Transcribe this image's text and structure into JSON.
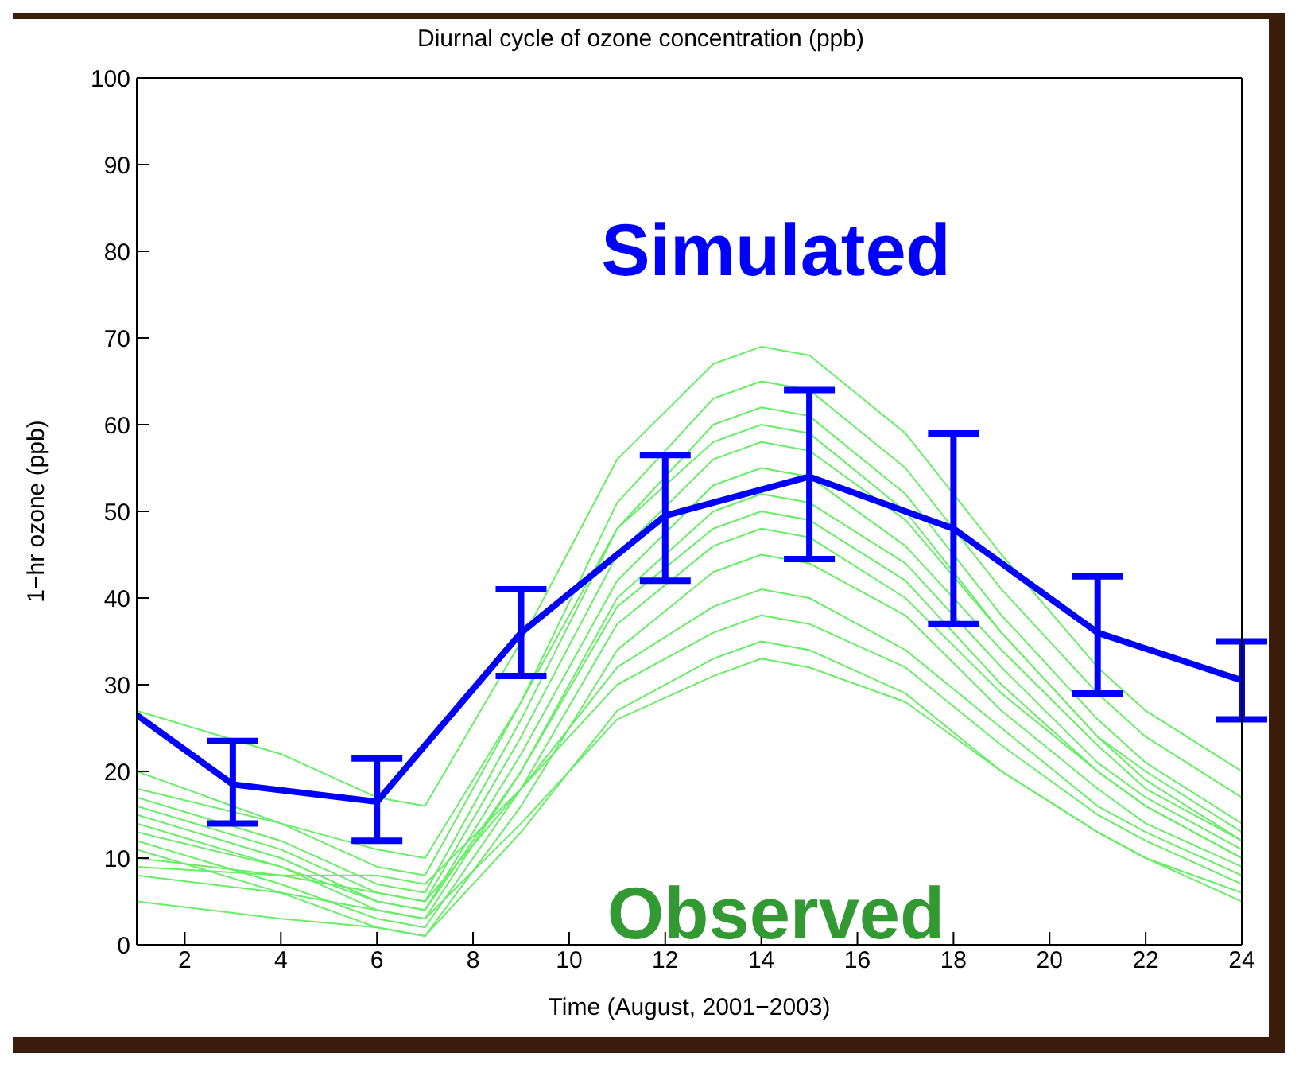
{
  "chart_data": {
    "type": "line",
    "title": "Diurnal cycle of ozone concentration (ppb)",
    "xlabel": "Time (August, 2001−2003)",
    "ylabel": "1−hr ozone (ppb)",
    "xlim": [
      1,
      24
    ],
    "xticks": [
      2,
      4,
      6,
      8,
      10,
      12,
      14,
      16,
      18,
      20,
      22,
      24
    ],
    "ylim": [
      0,
      100
    ],
    "yticks": [
      0,
      10,
      20,
      30,
      40,
      50,
      60,
      70,
      80,
      90,
      100
    ],
    "grid": false,
    "legend": false,
    "marker": "none",
    "line_style": "solid",
    "annotations": [
      "Observed"
    ],
    "series": [
      {
        "name": "Simulated",
        "color": "#0000ff",
        "x": [
          1,
          3,
          6,
          9,
          12,
          15,
          18,
          21,
          24
        ],
        "values": [
          26.5,
          18.5,
          16.5,
          36,
          49.5,
          54,
          48,
          36,
          30.5
        ],
        "errors": [
          null,
          [
            14,
            23.5
          ],
          [
            12,
            21.5
          ],
          [
            31,
            41
          ],
          [
            42,
            56.5
          ],
          [
            44.5,
            64
          ],
          [
            37,
            59
          ],
          [
            29,
            42.5
          ],
          [
            26,
            35
          ]
        ]
      },
      {
        "color": "#66ee66",
        "x": [
          1,
          4,
          6,
          7,
          9,
          11,
          13,
          14,
          15,
          17,
          19,
          21,
          22,
          24
        ],
        "values": [
          27,
          22,
          17,
          16,
          35,
          56,
          67,
          69,
          68,
          59,
          45,
          32,
          27,
          20
        ]
      },
      {
        "color": "#66ee66",
        "x": [
          1,
          4,
          6,
          7,
          9,
          11,
          13,
          14,
          15,
          17,
          19,
          21,
          22,
          24
        ],
        "values": [
          20,
          14,
          9,
          8,
          28,
          51,
          63,
          65,
          64,
          55,
          41,
          29,
          24,
          17
        ]
      },
      {
        "color": "#66ee66",
        "x": [
          1,
          4,
          6,
          7,
          9,
          11,
          13,
          14,
          15,
          17,
          19,
          21,
          22,
          24
        ],
        "values": [
          17,
          12,
          7,
          6,
          26,
          48,
          60,
          62,
          61,
          52,
          38,
          26,
          21,
          14
        ]
      },
      {
        "color": "#66ee66",
        "x": [
          1,
          4,
          6,
          7,
          9,
          11,
          13,
          14,
          15,
          17,
          19,
          21,
          22,
          24
        ],
        "values": [
          16,
          11,
          6,
          5,
          24,
          45,
          56,
          58,
          57,
          49,
          36,
          24,
          20,
          13
        ]
      },
      {
        "color": "#66ee66",
        "x": [
          1,
          4,
          6,
          7,
          9,
          11,
          13,
          14,
          15,
          17,
          19,
          21,
          22,
          24
        ],
        "values": [
          15,
          10,
          5,
          4,
          22,
          42,
          53,
          55,
          54,
          46,
          34,
          23,
          18,
          12
        ]
      },
      {
        "color": "#66ee66",
        "x": [
          1,
          4,
          6,
          7,
          9,
          11,
          13,
          14,
          15,
          17,
          19,
          21,
          22,
          24
        ],
        "values": [
          14,
          9,
          4,
          3,
          20,
          40,
          50,
          52,
          51,
          44,
          32,
          21,
          17,
          11
        ]
      },
      {
        "color": "#66ee66",
        "x": [
          1,
          4,
          6,
          7,
          9,
          11,
          13,
          14,
          15,
          17,
          19,
          21,
          22,
          24
        ],
        "values": [
          13,
          9,
          5,
          4,
          20,
          39,
          48,
          50,
          49,
          42,
          30,
          20,
          16,
          10
        ]
      },
      {
        "color": "#66ee66",
        "x": [
          1,
          4,
          6,
          7,
          9,
          11,
          13,
          14,
          15,
          17,
          19,
          21,
          22,
          24
        ],
        "values": [
          12,
          7,
          3,
          2,
          18,
          37,
          46,
          48,
          47,
          40,
          29,
          20,
          16,
          10
        ]
      },
      {
        "color": "#66ee66",
        "x": [
          1,
          4,
          6,
          7,
          9,
          11,
          13,
          14,
          15,
          17,
          19,
          21,
          22,
          24
        ],
        "values": [
          11,
          6,
          2,
          1,
          16,
          34,
          43,
          45,
          44,
          38,
          27,
          18,
          14,
          9
        ]
      },
      {
        "color": "#66ee66",
        "x": [
          1,
          4,
          6,
          7,
          9,
          11,
          13,
          14,
          15,
          17,
          19,
          21,
          22,
          24
        ],
        "values": [
          10,
          8,
          6,
          5,
          18,
          32,
          39,
          41,
          40,
          34,
          25,
          16,
          13,
          8
        ]
      },
      {
        "color": "#66ee66",
        "x": [
          1,
          4,
          6,
          7,
          9,
          11,
          13,
          14,
          15,
          17,
          19,
          21,
          22,
          24
        ],
        "values": [
          9,
          8,
          8,
          7,
          18,
          30,
          36,
          38,
          37,
          32,
          23,
          15,
          12,
          7
        ]
      },
      {
        "color": "#66ee66",
        "x": [
          1,
          4,
          6,
          7,
          9,
          11,
          13,
          14,
          15,
          17,
          19,
          21,
          22,
          24
        ],
        "values": [
          5,
          3,
          2,
          1,
          13,
          27,
          33,
          35,
          34,
          29,
          20,
          13,
          10,
          5
        ]
      },
      {
        "color": "#66ee66",
        "x": [
          1,
          4,
          6,
          7,
          9,
          11,
          13,
          14,
          15,
          17,
          19,
          21,
          22,
          24
        ],
        "values": [
          18,
          14,
          11,
          10,
          28,
          48,
          58,
          60,
          59,
          50,
          36,
          24,
          19,
          12
        ]
      },
      {
        "color": "#66ee66",
        "x": [
          1,
          4,
          6,
          7,
          9,
          11,
          13,
          14,
          15,
          17,
          19,
          21,
          22,
          24
        ],
        "values": [
          8,
          6,
          4,
          3,
          14,
          26,
          31,
          33,
          32,
          28,
          20,
          13,
          10,
          6
        ]
      }
    ]
  }
}
